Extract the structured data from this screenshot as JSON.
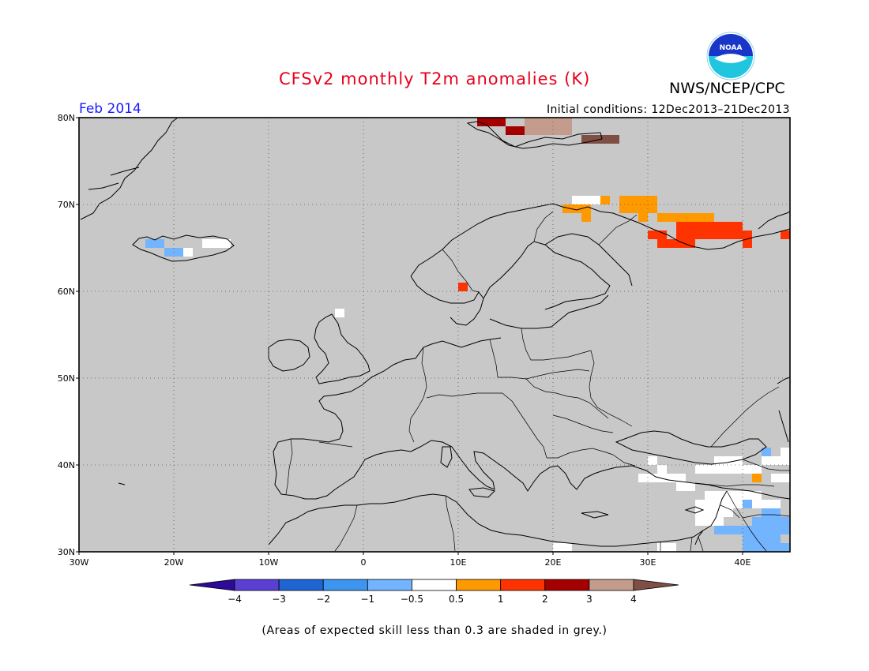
{
  "header": {
    "title": "CFSv2 monthly T2m anomalies (K)",
    "agency": "NWS/NCEP/CPC",
    "period": "Feb 2014",
    "initial_conditions": "Initial conditions: 12Dec2013–21Dec2013"
  },
  "footer": {
    "note": "(Areas of expected skill less than 0.3 are shaded in grey.)"
  },
  "logo": {
    "name": "noaa-logo",
    "text": "NOAA"
  },
  "map": {
    "lon_range": [
      -30,
      45
    ],
    "lat_range": [
      30,
      80
    ],
    "lon_ticks": [
      {
        "value": -30,
        "label": "30W"
      },
      {
        "value": -20,
        "label": "20W"
      },
      {
        "value": -10,
        "label": "10W"
      },
      {
        "value": 0,
        "label": "0"
      },
      {
        "value": 10,
        "label": "10E"
      },
      {
        "value": 20,
        "label": "20E"
      },
      {
        "value": 30,
        "label": "30E"
      },
      {
        "value": 40,
        "label": "40E"
      }
    ],
    "lat_ticks": [
      {
        "value": 30,
        "label": "30N"
      },
      {
        "value": 40,
        "label": "40N"
      },
      {
        "value": 50,
        "label": "50N"
      },
      {
        "value": 60,
        "label": "60N"
      },
      {
        "value": 70,
        "label": "70N"
      },
      {
        "value": 80,
        "label": "80N"
      }
    ],
    "grid": "dotted",
    "background_color": "#c8c8c8",
    "anomaly_cells": [
      {
        "lon": 12,
        "lat": 79,
        "w": 3,
        "h": 1,
        "color": "#a50000"
      },
      {
        "lon": 15,
        "lat": 78,
        "w": 2,
        "h": 1,
        "color": "#a50000"
      },
      {
        "lon": 17,
        "lat": 78,
        "w": 5,
        "h": 2,
        "color": "#c39c8d"
      },
      {
        "lon": 23,
        "lat": 77,
        "w": 4,
        "h": 1,
        "color": "#7f4f45"
      },
      {
        "lon": 22,
        "lat": 70,
        "w": 3,
        "h": 1,
        "color": "#ffffff"
      },
      {
        "lon": 21,
        "lat": 69,
        "w": 3,
        "h": 1,
        "color": "#ff9900"
      },
      {
        "lon": 23,
        "lat": 68,
        "w": 1,
        "h": 1,
        "color": "#ff9900"
      },
      {
        "lon": 25,
        "lat": 70,
        "w": 1,
        "h": 1,
        "color": "#ff9900"
      },
      {
        "lon": 27,
        "lat": 69,
        "w": 4,
        "h": 2,
        "color": "#ff9900"
      },
      {
        "lon": 29,
        "lat": 68,
        "w": 1,
        "h": 1,
        "color": "#ff9900"
      },
      {
        "lon": 31,
        "lat": 68,
        "w": 5,
        "h": 1,
        "color": "#ff9900"
      },
      {
        "lon": 36,
        "lat": 68,
        "w": 1,
        "h": 1,
        "color": "#ff9900"
      },
      {
        "lon": 36,
        "lat": 67,
        "w": 4,
        "h": 1,
        "color": "#ff3300"
      },
      {
        "lon": 33,
        "lat": 67,
        "w": 3,
        "h": 1,
        "color": "#ff3300"
      },
      {
        "lon": 30,
        "lat": 66,
        "w": 2,
        "h": 1,
        "color": "#ff3300"
      },
      {
        "lon": 33,
        "lat": 66,
        "w": 8,
        "h": 1,
        "color": "#ff3300"
      },
      {
        "lon": 31,
        "lat": 65,
        "w": 4,
        "h": 1,
        "color": "#ff3300"
      },
      {
        "lon": 40,
        "lat": 65,
        "w": 1,
        "h": 1,
        "color": "#ff3300"
      },
      {
        "lon": 44,
        "lat": 66,
        "w": 1,
        "h": 1,
        "color": "#ff3300"
      },
      {
        "lon": 10,
        "lat": 60,
        "w": 1,
        "h": 1,
        "color": "#ff3300"
      },
      {
        "lon": -23,
        "lat": 65,
        "w": 2,
        "h": 1,
        "color": "#73b4ff"
      },
      {
        "lon": -21,
        "lat": 64,
        "w": 2,
        "h": 1,
        "color": "#73b4ff"
      },
      {
        "lon": -19,
        "lat": 64,
        "w": 1,
        "h": 1,
        "color": "#ffffff"
      },
      {
        "lon": -17,
        "lat": 65,
        "w": 3,
        "h": 1,
        "color": "#ffffff"
      },
      {
        "lon": -3,
        "lat": 57,
        "w": 1,
        "h": 1,
        "color": "#ffffff"
      },
      {
        "lon": 29,
        "lat": 38,
        "w": 5,
        "h": 1,
        "color": "#ffffff"
      },
      {
        "lon": 31,
        "lat": 39,
        "w": 1,
        "h": 1,
        "color": "#ffffff"
      },
      {
        "lon": 35,
        "lat": 39,
        "w": 7,
        "h": 1,
        "color": "#ffffff"
      },
      {
        "lon": 33,
        "lat": 37,
        "w": 2,
        "h": 1,
        "color": "#ffffff"
      },
      {
        "lon": 36,
        "lat": 36,
        "w": 6,
        "h": 1,
        "color": "#ffffff"
      },
      {
        "lon": 42,
        "lat": 40,
        "w": 3,
        "h": 1,
        "color": "#ffffff"
      },
      {
        "lon": 43,
        "lat": 38,
        "w": 2,
        "h": 1,
        "color": "#ffffff"
      },
      {
        "lon": 35,
        "lat": 35,
        "w": 9,
        "h": 1,
        "color": "#ffffff"
      },
      {
        "lon": 35,
        "lat": 34,
        "w": 4,
        "h": 1,
        "color": "#ffffff"
      },
      {
        "lon": 35,
        "lat": 33,
        "w": 3,
        "h": 1,
        "color": "#ffffff"
      },
      {
        "lon": 31,
        "lat": 30,
        "w": 2,
        "h": 1,
        "color": "#ffffff"
      },
      {
        "lon": 20,
        "lat": 30,
        "w": 2,
        "h": 1,
        "color": "#ffffff"
      },
      {
        "lon": 30,
        "lat": 40,
        "w": 1,
        "h": 1,
        "color": "#ffffff"
      },
      {
        "lon": 37,
        "lat": 40,
        "w": 3,
        "h": 1,
        "color": "#ffffff"
      },
      {
        "lon": 42,
        "lat": 41,
        "w": 1,
        "h": 1,
        "color": "#ffffff"
      },
      {
        "lon": 44,
        "lat": 41,
        "w": 1,
        "h": 1,
        "color": "#ffffff"
      },
      {
        "lon": 42,
        "lat": 41,
        "w": 1,
        "h": 1,
        "color": "#73b4ff"
      },
      {
        "lon": 41,
        "lat": 38,
        "w": 1,
        "h": 1,
        "color": "#ff9900"
      },
      {
        "lon": 40,
        "lat": 35,
        "w": 1,
        "h": 1,
        "color": "#73b4ff"
      },
      {
        "lon": 42,
        "lat": 34,
        "w": 2,
        "h": 1,
        "color": "#73b4ff"
      },
      {
        "lon": 41,
        "lat": 33,
        "w": 4,
        "h": 1,
        "color": "#73b4ff"
      },
      {
        "lon": 39,
        "lat": 32,
        "w": 6,
        "h": 1,
        "color": "#73b4ff"
      },
      {
        "lon": 37,
        "lat": 32,
        "w": 2,
        "h": 1,
        "color": "#73b4ff"
      },
      {
        "lon": 40,
        "lat": 31,
        "w": 4,
        "h": 1,
        "color": "#73b4ff"
      },
      {
        "lon": 40,
        "lat": 30,
        "w": 5,
        "h": 1,
        "color": "#73b4ff"
      }
    ]
  },
  "colorbar": {
    "levels": [
      "−4",
      "−3",
      "−2",
      "−1",
      "−0.5",
      "0.5",
      "1",
      "2",
      "3",
      "4"
    ],
    "colors": [
      "#2d0b96",
      "#5a3fd2",
      "#1e64d2",
      "#3c96f0",
      "#73b4ff",
      "#ffffff",
      "#ff9900",
      "#ff3300",
      "#a50000",
      "#c39c8d",
      "#7f4f45"
    ]
  }
}
